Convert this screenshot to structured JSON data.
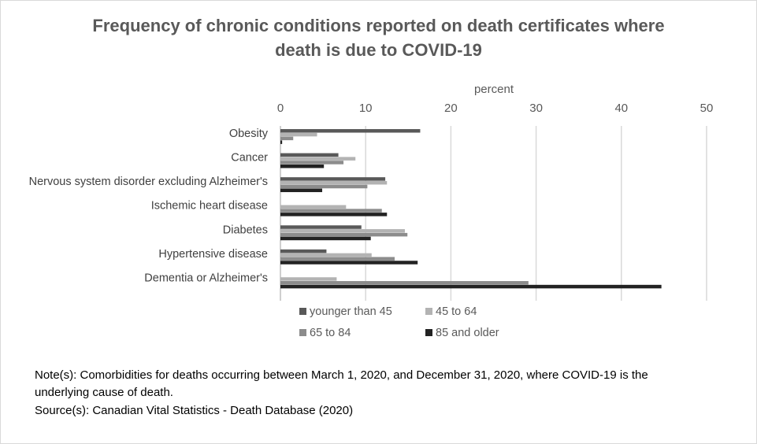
{
  "chart_data": {
    "type": "bar",
    "orientation": "horizontal",
    "title_line1": "Frequency of chronic conditions reported on death certificates where",
    "title_line2": "death is due to COVID-19",
    "xlabel": "percent",
    "xlim": [
      0,
      50
    ],
    "xticks": [
      0,
      10,
      20,
      30,
      40,
      50
    ],
    "grid": true,
    "legend_position": "bottom",
    "categories": [
      "Obesity",
      "Cancer",
      "Nervous system disorder excluding Alzheimer's",
      "Ischemic heart disease",
      "Diabetes",
      "Hypertensive disease",
      "Dementia or Alzheimer's"
    ],
    "series": [
      {
        "name": "younger than 45",
        "color": "#595959",
        "values": [
          16.4,
          6.8,
          12.3,
          0.0,
          9.5,
          5.4,
          0.0
        ]
      },
      {
        "name": "45 to 64",
        "color": "#b3b3b3",
        "values": [
          4.3,
          8.8,
          12.5,
          7.7,
          14.6,
          10.7,
          6.6
        ]
      },
      {
        "name": "65 to 84",
        "color": "#8c8c8c",
        "values": [
          1.5,
          7.4,
          10.2,
          11.9,
          14.9,
          13.4,
          29.1
        ]
      },
      {
        "name": "85 and older",
        "color": "#222222",
        "values": [
          0.2,
          5.1,
          4.9,
          12.5,
          10.6,
          16.1,
          44.7
        ]
      }
    ]
  },
  "notes": {
    "line1": "Note(s): Comorbidities for deaths occurring between March 1, 2020, and December 31, 2020, where COVID-19 is the",
    "line2": "underlying cause of death.",
    "line3": "Source(s): Canadian Vital Statistics - Death Database (2020)"
  }
}
